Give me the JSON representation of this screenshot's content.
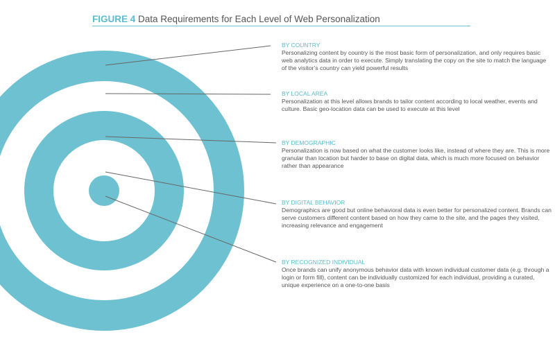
{
  "figure": {
    "label": "FIGURE 4",
    "title": "Data Requirements for Each Level of Web Personalization"
  },
  "colors": {
    "accent": "#6cc0cf",
    "ring": "#6ec1d0",
    "text": "#555555",
    "leader": "#666666"
  },
  "levels": [
    {
      "heading": "BY COUNTRY",
      "text": "Personalizing content by country is the most basic form of personalization, and only requires basic web analytics data in order to execute. Simply translating the copy on the site to match the language of the visitor’s country can yield powerful results"
    },
    {
      "heading": "BY LOCAL AREA",
      "text": "Personalization at this level allows brands to tailor content according to local weather, events and culture. Basic geo-location data can be used to execute at this level"
    },
    {
      "heading": "BY DEMOGRAPHIC",
      "text": "Personalization is now based on what the customer looks like, instead of where they are. This is more granular than location but harder to base on digital data, which is much more focused on behavior rather than appearance"
    },
    {
      "heading": "BY DIGITAL BEHAVIOR",
      "text": "Demographics are good but online behavioral data is even better for personalized content. Brands can serve customers different content based on how they came to the site, and the pages they visited, increasing relevance and engagement"
    },
    {
      "heading": "BY RECOGNIZED INDIVIDUAL",
      "text": "Once brands can unify anonymous behavior data with known individual customer data (e.g. through a login or form fill), content can be individually customized for each individual, providing a curated, unique experience on a one-to-one basis"
    }
  ]
}
